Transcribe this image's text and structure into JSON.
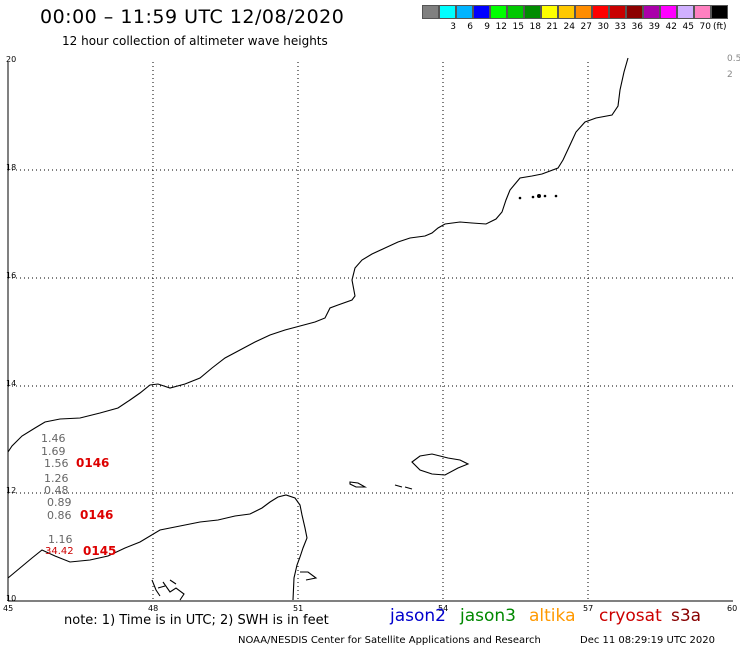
{
  "header": {
    "title": "00:00 – 11:59 UTC 12/08/2020",
    "subtitle": "12 hour collection of altimeter wave heights"
  },
  "legend": {
    "colors": [
      "#808080",
      "#00ffff",
      "#00b4ff",
      "#0000ff",
      "#00ff00",
      "#00c800",
      "#008c00",
      "#ffff00",
      "#ffc800",
      "#ff8c00",
      "#ff0000",
      "#c80000",
      "#8c0000",
      "#aa00aa",
      "#ff00ff",
      "#d0b0ff",
      "#ff80c0",
      "#000000"
    ],
    "labels": [
      "3",
      "6",
      "9",
      "12",
      "15",
      "18",
      "21",
      "24",
      "27",
      "30",
      "33",
      "36",
      "39",
      "42",
      "45",
      "70"
    ],
    "unit": "(ft)"
  },
  "axes": {
    "lat_labels": [
      "20",
      "18",
      "16",
      "14",
      "12",
      "10"
    ],
    "lon_labels": [
      "45",
      "48",
      "51",
      "54",
      "57",
      "60"
    ]
  },
  "right_fragments": [
    "0.5",
    "2"
  ],
  "observations": {
    "values": [
      "1.46",
      "1.69",
      "1.56",
      "1.26",
      "0.48",
      "0.89",
      "0.86",
      "1.16",
      "34.42"
    ],
    "passes": [
      "0146",
      "0146",
      "0145"
    ]
  },
  "note": "note: 1) Time is in UTC; 2) SWH is in feet",
  "satellites": [
    {
      "name": "jason2",
      "color": "#0000cc"
    },
    {
      "name": "jason3",
      "color": "#008800"
    },
    {
      "name": "altika",
      "color": "#ff9900"
    },
    {
      "name": "cryosat",
      "color": "#cc0000"
    },
    {
      "name": "s3a",
      "color": "#880000"
    }
  ],
  "footer": {
    "credit": "NOAA/NESDIS Center for Satellite Applications and Research",
    "timestamp": "Dec 11 08:29:19 UTC 2020"
  }
}
